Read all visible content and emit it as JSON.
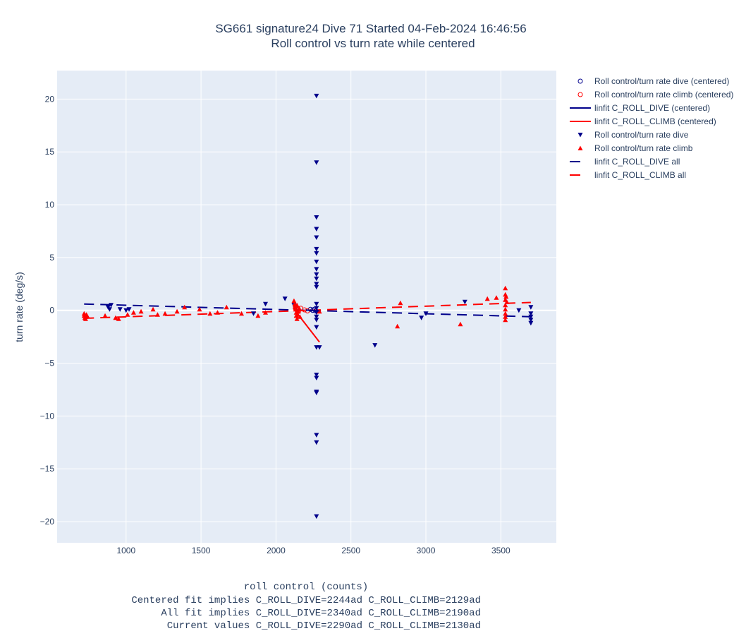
{
  "chart_data": {
    "type": "scatter",
    "title": "SG661 signature24 Dive 71 Started 04-Feb-2024 16:46:56",
    "subtitle": "Roll control vs turn rate while centered",
    "ylabel": "turn rate (deg/s)",
    "xlabel_lines": [
      "roll control (counts)",
      "Centered fit implies C_ROLL_DIVE=2244ad C_ROLL_CLIMB=2129ad",
      "All fit implies C_ROLL_DIVE=2340ad C_ROLL_CLIMB=2190ad",
      "Current values C_ROLL_DIVE=2290ad C_ROLL_CLIMB=2130ad"
    ],
    "xlim": [
      540,
      3870
    ],
    "ylim": [
      -22,
      22.7
    ],
    "xticks": [
      1000,
      1500,
      2000,
      2500,
      3000,
      3500
    ],
    "yticks": [
      -20,
      -15,
      -10,
      -5,
      0,
      5,
      10,
      15,
      20
    ],
    "ytick_labels": [
      "−20",
      "−15",
      "−10",
      "−5",
      "0",
      "5",
      "10",
      "15",
      "20"
    ],
    "grid": true,
    "legend_position": "top-right",
    "colors": {
      "dive": "#00008b",
      "climb": "#ff0000",
      "plot_bg": "#e5ecf6",
      "grid": "#ffffff"
    },
    "series": [
      {
        "name": "Roll control/turn rate dive (centered)",
        "kind": "markers",
        "marker": "circle-open",
        "color": "#00008b",
        "x": [
          2230,
          2245,
          2255,
          2265
        ],
        "y": [
          0.1,
          0.0,
          0.1,
          -0.05
        ]
      },
      {
        "name": "Roll control/turn rate climb (centered)",
        "kind": "markers",
        "marker": "circle-open",
        "color": "#ff0000",
        "x": [
          2130,
          2140,
          2150,
          2165,
          2190,
          2210
        ],
        "y": [
          0.3,
          0.1,
          -0.1,
          0.2,
          0.05,
          -0.05
        ]
      },
      {
        "name": "linfit C_ROLL_DIVE (centered)",
        "kind": "line",
        "dash": "solid",
        "color": "#00008b",
        "x": [
          2200,
          2290
        ],
        "y": [
          0.03,
          -0.05
        ]
      },
      {
        "name": "linfit C_ROLL_CLIMB (centered)",
        "kind": "line",
        "dash": "solid",
        "color": "#ff0000",
        "x": [
          2115,
          2290
        ],
        "y": [
          0.2,
          -3.0
        ]
      },
      {
        "name": "Roll control/turn rate dive",
        "kind": "markers",
        "marker": "triangle-down",
        "color": "#00008b",
        "x": [
          880,
          890,
          900,
          960,
          1000,
          1020,
          1850,
          1930,
          2060,
          2120,
          2130,
          2140,
          2270,
          2270,
          2270,
          2270,
          2270,
          2270,
          2270,
          2270,
          2270,
          2270,
          2270,
          2270,
          2270,
          2270,
          2270,
          2270,
          2270,
          2270,
          2270,
          2270,
          2270,
          2270,
          2270,
          2270,
          2270,
          2270,
          2270,
          2290,
          2660,
          2970,
          3000,
          3260,
          3620,
          3700,
          3700,
          3700,
          3700,
          3700
        ],
        "y": [
          0.3,
          0.1,
          0.5,
          0.1,
          0.0,
          0.1,
          -0.3,
          0.6,
          1.1,
          0.5,
          0.2,
          -0.1,
          20.3,
          14.0,
          8.8,
          7.7,
          6.9,
          5.8,
          5.4,
          4.6,
          3.9,
          3.4,
          3.0,
          2.5,
          2.2,
          0.6,
          0.2,
          -0.2,
          -0.6,
          -0.9,
          -1.6,
          -3.5,
          -6.1,
          -6.4,
          -7.7,
          -7.8,
          -11.8,
          -12.5,
          -19.5,
          -3.5,
          -3.3,
          -0.7,
          -0.3,
          0.8,
          0.0,
          0.3,
          -0.3,
          -0.6,
          -0.9,
          -1.2
        ],
        "note_hidden": false
      },
      {
        "name": "Roll control/turn rate climb",
        "kind": "markers",
        "marker": "triangle-up",
        "color": "#ff0000",
        "x": [
          720,
          720,
          725,
          730,
          730,
          735,
          740,
          860,
          930,
          950,
          1010,
          1050,
          1100,
          1180,
          1210,
          1260,
          1340,
          1390,
          1490,
          1560,
          1610,
          1670,
          1770,
          1880,
          1930,
          2120,
          2125,
          2130,
          2130,
          2135,
          2135,
          2140,
          2140,
          2145,
          2150,
          2155,
          2160,
          2290,
          2810,
          2830,
          3230,
          3410,
          3470,
          3530,
          3530,
          3530,
          3530,
          3530,
          3530,
          3530,
          3530,
          3535,
          3540
        ],
        "y": [
          -0.3,
          -0.5,
          -0.7,
          -0.8,
          -0.6,
          -0.4,
          -0.5,
          -0.5,
          -0.7,
          -0.8,
          -0.4,
          -0.2,
          -0.1,
          0.1,
          -0.4,
          -0.3,
          -0.1,
          0.3,
          0.1,
          -0.3,
          -0.2,
          0.3,
          -0.3,
          -0.5,
          -0.2,
          0.9,
          0.6,
          0.4,
          0.1,
          -0.2,
          -0.5,
          -0.8,
          0.5,
          -0.4,
          -0.1,
          0.2,
          -0.6,
          -0.1,
          -1.5,
          0.7,
          -1.3,
          1.1,
          1.2,
          2.1,
          1.5,
          1.0,
          0.5,
          0.1,
          -0.3,
          -0.6,
          -0.9,
          1.3,
          0.8
        ]
      },
      {
        "name": "linfit C_ROLL_DIVE all",
        "kind": "line",
        "dash": "dash",
        "color": "#00008b",
        "x": [
          720,
          3700
        ],
        "y": [
          0.6,
          -0.6
        ]
      },
      {
        "name": "linfit C_ROLL_CLIMB all",
        "kind": "line",
        "dash": "dash",
        "color": "#ff0000",
        "x": [
          720,
          3700
        ],
        "y": [
          -0.75,
          0.75
        ]
      }
    ]
  }
}
